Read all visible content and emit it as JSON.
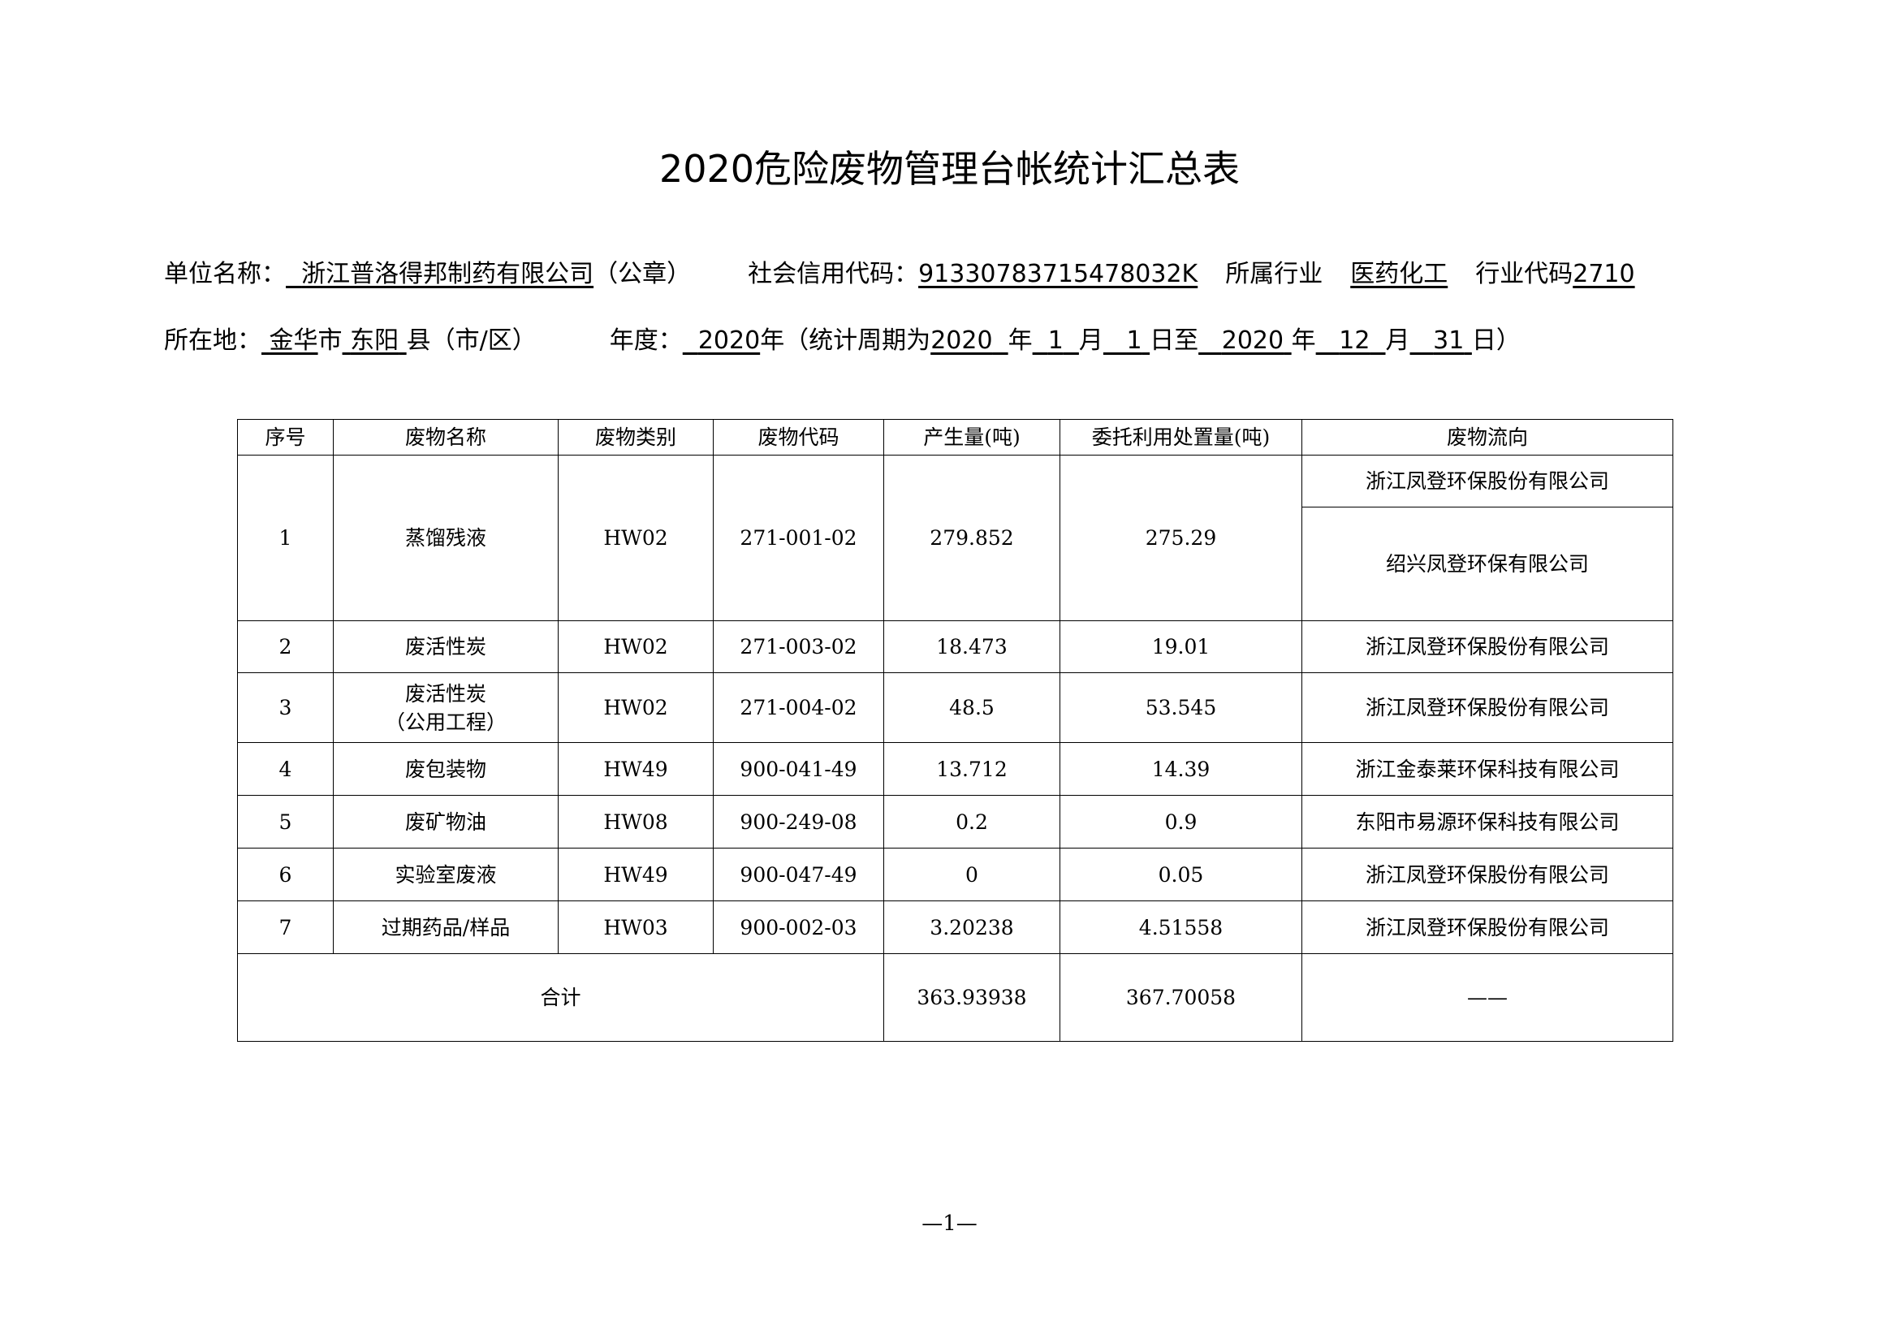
{
  "title": "2020危险废物管理台帐统计汇总表",
  "info": {
    "unit_label": "单位名称：",
    "unit_name": "浙江普洛得邦制药有限公司",
    "seal": "（公章）",
    "credit_label": "社会信用代码：",
    "credit_code": "91330783715478032K",
    "industry_label": "所属行业",
    "industry": "医药化工",
    "industry_code_label": "行业代码",
    "industry_code": "2710",
    "location_label": "所在地：",
    "city": "金华",
    "city_suffix": "市",
    "county": "东阳",
    "county_suffix": "县（市/区）",
    "year_label": "年度：",
    "year": "2020",
    "year_suffix": "年（统计周期为",
    "start_year": "2020",
    "start_month": "1",
    "start_day": "1",
    "end_year": "2020",
    "end_month": "12",
    "end_day": "31",
    "unit_year": "年",
    "unit_month": "月",
    "unit_day_to": "日至",
    "unit_day_end": "日）"
  },
  "table": {
    "headers": [
      "序号",
      "废物名称",
      "废物类别",
      "废物代码",
      "产生量(吨)",
      "委托利用处置量(吨)",
      "废物流向"
    ],
    "rows": [
      {
        "no": "1",
        "name": "蒸馏残液",
        "category": "HW02",
        "code": "271-001-02",
        "produced": "279.852",
        "disposed": "275.29",
        "destinations": [
          "浙江凤登环保股份有限公司",
          "绍兴凤登环保有限公司"
        ]
      },
      {
        "no": "2",
        "name": "废活性炭",
        "category": "HW02",
        "code": "271-003-02",
        "produced": "18.473",
        "disposed": "19.01",
        "destinations": [
          "浙江凤登环保股份有限公司"
        ]
      },
      {
        "no": "3",
        "name": "废活性炭",
        "name2": "（公用工程）",
        "category": "HW02",
        "code": "271-004-02",
        "produced": "48.5",
        "disposed": "53.545",
        "destinations": [
          "浙江凤登环保股份有限公司"
        ]
      },
      {
        "no": "4",
        "name": "废包装物",
        "category": "HW49",
        "code": "900-041-49",
        "produced": "13.712",
        "disposed": "14.39",
        "destinations": [
          "浙江金泰莱环保科技有限公司"
        ]
      },
      {
        "no": "5",
        "name": "废矿物油",
        "category": "HW08",
        "code": "900-249-08",
        "produced": "0.2",
        "disposed": "0.9",
        "destinations": [
          "东阳市易源环保科技有限公司"
        ]
      },
      {
        "no": "6",
        "name": "实验室废液",
        "category": "HW49",
        "code": "900-047-49",
        "produced": "0",
        "disposed": "0.05",
        "destinations": [
          "浙江凤登环保股份有限公司"
        ]
      },
      {
        "no": "7",
        "name": "过期药品/样品",
        "category": "HW03",
        "code": "900-002-03",
        "produced": "3.20238",
        "disposed": "4.51558",
        "destinations": [
          "浙江凤登环保股份有限公司"
        ]
      }
    ],
    "total": {
      "label": "合计",
      "produced": "363.93938",
      "disposed": "367.70058",
      "destination": "——"
    }
  },
  "page_number": "—1—"
}
